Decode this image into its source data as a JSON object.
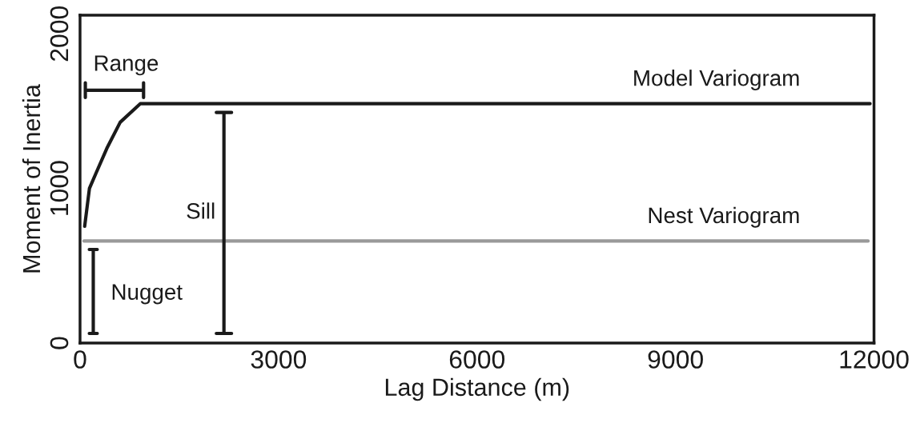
{
  "chart_data": {
    "type": "line",
    "xlabel": "Lag Distance (m)",
    "ylabel": "Moment of Inertia",
    "xlim": [
      0,
      12000
    ],
    "xticks": [
      0,
      3000,
      6000,
      9000,
      12000
    ],
    "ylim": [
      0,
      2120
    ],
    "yticks": [
      0,
      1000,
      2000
    ],
    "series": [
      {
        "name": "Model Variogram",
        "color": "#1a1a1a",
        "x": [
          70,
          142,
          243,
          405,
          607,
          910,
          11940
        ],
        "values": [
          755,
          1000,
          1100,
          1259,
          1428,
          1548,
          1548
        ]
      },
      {
        "name": "Nest Variogram",
        "color": "#999999",
        "x": [
          60,
          11910
        ],
        "values": [
          660,
          660
        ]
      },
      {
        "color": "#1a1a1a",
        "x": [
          80,
          80,
          80,
          960,
          960,
          960
        ],
        "values": [
          1588,
          1683,
          1635,
          1635,
          1683,
          1588
        ]
      },
      {
        "color": "#1a1a1a",
        "x": [
          140,
          260,
          200,
          200,
          140,
          260
        ],
        "values": [
          605,
          605,
          605,
          62,
          62,
          62
        ]
      },
      {
        "color": "#1a1a1a",
        "x": [
          2060,
          2290,
          2175,
          2175,
          2060,
          2290
        ],
        "values": [
          1491,
          1491,
          1491,
          62,
          62,
          62
        ]
      }
    ],
    "annotations": [
      "Range",
      "Nugget",
      "Sill"
    ]
  }
}
